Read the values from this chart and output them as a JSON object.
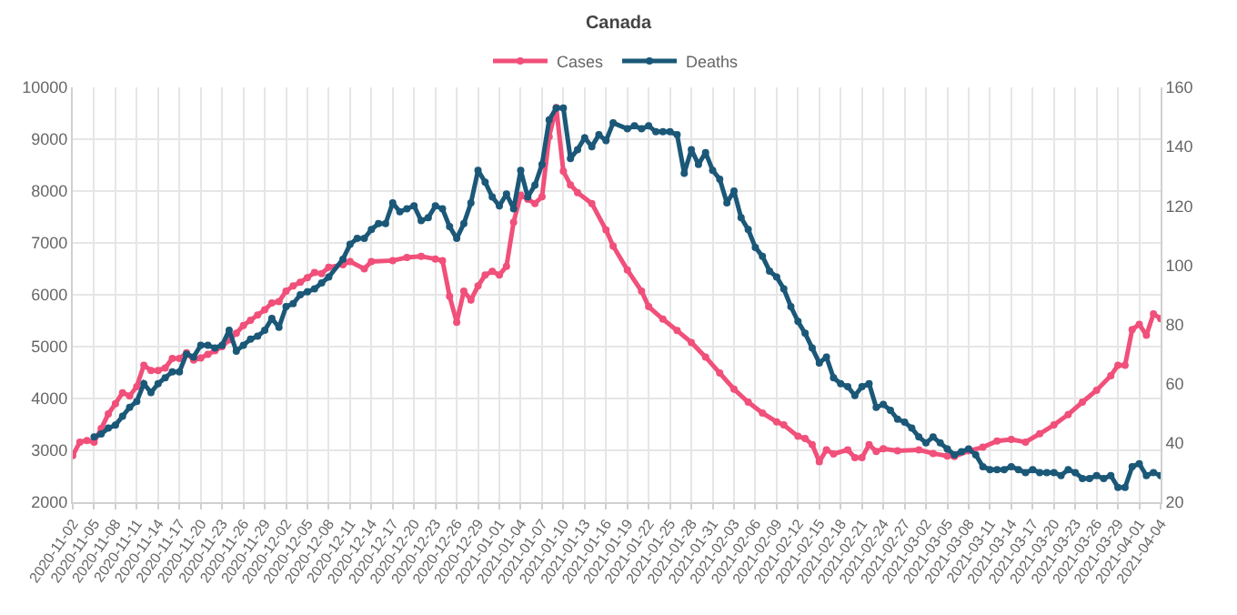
{
  "chart_data": {
    "type": "line",
    "title": "Canada",
    "xlim": [
      "2020-11-02",
      "2021-04-04"
    ],
    "xticks": [
      "2020-11-02",
      "2020-11-05",
      "2020-11-08",
      "2020-11-11",
      "2020-11-14",
      "2020-11-17",
      "2020-11-20",
      "2020-11-23",
      "2020-11-26",
      "2020-11-29",
      "2020-12-02",
      "2020-12-05",
      "2020-12-08",
      "2020-12-11",
      "2020-12-14",
      "2020-12-17",
      "2020-12-20",
      "2020-12-23",
      "2020-12-26",
      "2020-12-29",
      "2021-01-01",
      "2021-01-04",
      "2021-01-07",
      "2021-01-10",
      "2021-01-13",
      "2021-01-16",
      "2021-01-19",
      "2021-01-22",
      "2021-01-25",
      "2021-01-28",
      "2021-01-31",
      "2021-02-03",
      "2021-02-06",
      "2021-02-09",
      "2021-02-12",
      "2021-02-15",
      "2021-02-18",
      "2021-02-21",
      "2021-02-24",
      "2021-02-27",
      "2021-03-02",
      "2021-03-05",
      "2021-03-08",
      "2021-03-11",
      "2021-03-14",
      "2021-03-17",
      "2021-03-20",
      "2021-03-23",
      "2021-03-26",
      "2021-03-29",
      "2021-04-01",
      "2021-04-04"
    ],
    "ylim": [
      2000,
      10000
    ],
    "yticks": [
      2000,
      3000,
      4000,
      5000,
      6000,
      7000,
      8000,
      9000,
      10000
    ],
    "y2lim": [
      20,
      160
    ],
    "y2ticks": [
      20,
      40,
      60,
      80,
      100,
      120,
      140,
      160
    ],
    "grid": true,
    "legend": "top",
    "marker": "circle",
    "line_style": "solid",
    "series": [
      {
        "name": "Cases",
        "color": "#f0507a",
        "axis": "y",
        "x": [
          "2020-11-02",
          "2020-11-03",
          "2020-11-04",
          "2020-11-05",
          "2020-11-06",
          "2020-11-07",
          "2020-11-08",
          "2020-11-09",
          "2020-11-10",
          "2020-11-11",
          "2020-11-12",
          "2020-11-13",
          "2020-11-14",
          "2020-11-15",
          "2020-11-16",
          "2020-11-17",
          "2020-11-18",
          "2020-11-19",
          "2020-11-20",
          "2020-11-21",
          "2020-11-22",
          "2020-11-23",
          "2020-11-24",
          "2020-11-25",
          "2020-11-26",
          "2020-11-27",
          "2020-11-28",
          "2020-11-29",
          "2020-11-30",
          "2020-12-01",
          "2020-12-02",
          "2020-12-03",
          "2020-12-04",
          "2020-12-05",
          "2020-12-06",
          "2020-12-07",
          "2020-12-08",
          "2020-12-10",
          "2020-12-11",
          "2020-12-13",
          "2020-12-14",
          "2020-12-17",
          "2020-12-19",
          "2020-12-21",
          "2020-12-23",
          "2020-12-24",
          "2020-12-25",
          "2020-12-26",
          "2020-12-27",
          "2020-12-28",
          "2020-12-29",
          "2020-12-30",
          "2020-12-31",
          "2021-01-01",
          "2021-01-02",
          "2021-01-03",
          "2021-01-04",
          "2021-01-05",
          "2021-01-06",
          "2021-01-07",
          "2021-01-08",
          "2021-01-09",
          "2021-01-10",
          "2021-01-11",
          "2021-01-12",
          "2021-01-14",
          "2021-01-16",
          "2021-01-17",
          "2021-01-19",
          "2021-01-21",
          "2021-01-22",
          "2021-01-24",
          "2021-01-26",
          "2021-01-28",
          "2021-01-30",
          "2021-02-01",
          "2021-02-03",
          "2021-02-05",
          "2021-02-07",
          "2021-02-09",
          "2021-02-10",
          "2021-02-12",
          "2021-02-13",
          "2021-02-14",
          "2021-02-15",
          "2021-02-16",
          "2021-02-17",
          "2021-02-19",
          "2021-02-20",
          "2021-02-21",
          "2021-02-22",
          "2021-02-23",
          "2021-02-24",
          "2021-02-26",
          "2021-03-01",
          "2021-03-03",
          "2021-03-05",
          "2021-03-06",
          "2021-03-08",
          "2021-03-10",
          "2021-03-12",
          "2021-03-14",
          "2021-03-16",
          "2021-03-18",
          "2021-03-20",
          "2021-03-22",
          "2021-03-24",
          "2021-03-26",
          "2021-03-28",
          "2021-03-29",
          "2021-03-30",
          "2021-03-31",
          "2021-04-01",
          "2021-04-02",
          "2021-04-03",
          "2021-04-04"
        ],
        "values": [
          2900,
          3160,
          3190,
          3160,
          3420,
          3700,
          3900,
          4110,
          4050,
          4230,
          4640,
          4540,
          4540,
          4590,
          4770,
          4770,
          4880,
          4740,
          4780,
          4850,
          4920,
          5000,
          5130,
          5260,
          5410,
          5510,
          5610,
          5710,
          5840,
          5870,
          6070,
          6170,
          6240,
          6330,
          6430,
          6410,
          6530,
          6580,
          6640,
          6500,
          6640,
          6660,
          6720,
          6740,
          6690,
          6660,
          5970,
          5470,
          6070,
          5900,
          6170,
          6380,
          6450,
          6380,
          6550,
          7400,
          7920,
          7840,
          7760,
          7890,
          9050,
          9610,
          8380,
          8120,
          7970,
          7760,
          7250,
          6940,
          6480,
          6070,
          5770,
          5530,
          5310,
          5080,
          4800,
          4490,
          4180,
          3930,
          3720,
          3550,
          3490,
          3270,
          3230,
          3110,
          2780,
          3010,
          2930,
          3010,
          2860,
          2860,
          3110,
          2980,
          3030,
          2990,
          3010,
          2940,
          2890,
          2880,
          2990,
          3060,
          3180,
          3210,
          3160,
          3320,
          3490,
          3690,
          3930,
          4160,
          4440,
          4640,
          4640,
          5330,
          5430,
          5220,
          5630,
          5540
        ]
      },
      {
        "name": "Deaths",
        "color": "#1b5878",
        "axis": "y2",
        "x": [
          "2020-11-05",
          "2020-11-06",
          "2020-11-07",
          "2020-11-08",
          "2020-11-09",
          "2020-11-10",
          "2020-11-11",
          "2020-11-12",
          "2020-11-13",
          "2020-11-14",
          "2020-11-15",
          "2020-11-16",
          "2020-11-17",
          "2020-11-18",
          "2020-11-19",
          "2020-11-20",
          "2020-11-21",
          "2020-11-22",
          "2020-11-23",
          "2020-11-24",
          "2020-11-25",
          "2020-11-26",
          "2020-11-27",
          "2020-11-28",
          "2020-11-29",
          "2020-11-30",
          "2020-12-01",
          "2020-12-02",
          "2020-12-03",
          "2020-12-04",
          "2020-12-05",
          "2020-12-06",
          "2020-12-07",
          "2020-12-08",
          "2020-12-10",
          "2020-12-11",
          "2020-12-12",
          "2020-12-13",
          "2020-12-14",
          "2020-12-15",
          "2020-12-16",
          "2020-12-17",
          "2020-12-18",
          "2020-12-19",
          "2020-12-20",
          "2020-12-21",
          "2020-12-22",
          "2020-12-23",
          "2020-12-24",
          "2020-12-25",
          "2020-12-26",
          "2020-12-27",
          "2020-12-28",
          "2020-12-29",
          "2020-12-30",
          "2020-12-31",
          "2021-01-01",
          "2021-01-02",
          "2021-01-03",
          "2021-01-04",
          "2021-01-05",
          "2021-01-06",
          "2021-01-07",
          "2021-01-08",
          "2021-01-09",
          "2021-01-10",
          "2021-01-11",
          "2021-01-12",
          "2021-01-13",
          "2021-01-14",
          "2021-01-15",
          "2021-01-16",
          "2021-01-17",
          "2021-01-19",
          "2021-01-20",
          "2021-01-21",
          "2021-01-22",
          "2021-01-23",
          "2021-01-24",
          "2021-01-25",
          "2021-01-26",
          "2021-01-27",
          "2021-01-28",
          "2021-01-29",
          "2021-01-30",
          "2021-01-31",
          "2021-02-01",
          "2021-02-02",
          "2021-02-03",
          "2021-02-04",
          "2021-02-05",
          "2021-02-06",
          "2021-02-07",
          "2021-02-08",
          "2021-02-09",
          "2021-02-10",
          "2021-02-11",
          "2021-02-12",
          "2021-02-13",
          "2021-02-14",
          "2021-02-15",
          "2021-02-16",
          "2021-02-17",
          "2021-02-18",
          "2021-02-19",
          "2021-02-20",
          "2021-02-21",
          "2021-02-22",
          "2021-02-23",
          "2021-02-24",
          "2021-02-25",
          "2021-02-26",
          "2021-02-27",
          "2021-02-28",
          "2021-03-01",
          "2021-03-02",
          "2021-03-03",
          "2021-03-04",
          "2021-03-05",
          "2021-03-06",
          "2021-03-07",
          "2021-03-08",
          "2021-03-09",
          "2021-03-10",
          "2021-03-11",
          "2021-03-12",
          "2021-03-13",
          "2021-03-14",
          "2021-03-15",
          "2021-03-16",
          "2021-03-17",
          "2021-03-18",
          "2021-03-19",
          "2021-03-20",
          "2021-03-21",
          "2021-03-22",
          "2021-03-23",
          "2021-03-24",
          "2021-03-25",
          "2021-03-26",
          "2021-03-27",
          "2021-03-28",
          "2021-03-29",
          "2021-03-30",
          "2021-03-31",
          "2021-04-01",
          "2021-04-02",
          "2021-04-03",
          "2021-04-04"
        ],
        "values": [
          42,
          43,
          45,
          46,
          49,
          52,
          54,
          60,
          57,
          60,
          62,
          64,
          64,
          70,
          69,
          73,
          73,
          72,
          73,
          78,
          71,
          73,
          75,
          76,
          78,
          82,
          79,
          86,
          87,
          90,
          91,
          92,
          94,
          96,
          102,
          107,
          109,
          109,
          112,
          114,
          114,
          121,
          118,
          119,
          120,
          115,
          116,
          120,
          119,
          113,
          109,
          114,
          121,
          132,
          128,
          123,
          120,
          124,
          119,
          132,
          123,
          127,
          134,
          149,
          153,
          153,
          136,
          139,
          143,
          140,
          144,
          142,
          148,
          146,
          147,
          146,
          147,
          145,
          145,
          145,
          144,
          131,
          139,
          134,
          138,
          132,
          129,
          121,
          125,
          116,
          112,
          106,
          103,
          98,
          96,
          92,
          86,
          81,
          77,
          72,
          67,
          69,
          62,
          60,
          59,
          56,
          59,
          60,
          52,
          53,
          51,
          48,
          47,
          45,
          42,
          40,
          42,
          40,
          38,
          36,
          37,
          38,
          36,
          32,
          31,
          31,
          31,
          32,
          31,
          30,
          31,
          30,
          30,
          30,
          29,
          31,
          30,
          28,
          28,
          29,
          28,
          29,
          25,
          25,
          32,
          33,
          29,
          30,
          29
        ]
      }
    ]
  }
}
